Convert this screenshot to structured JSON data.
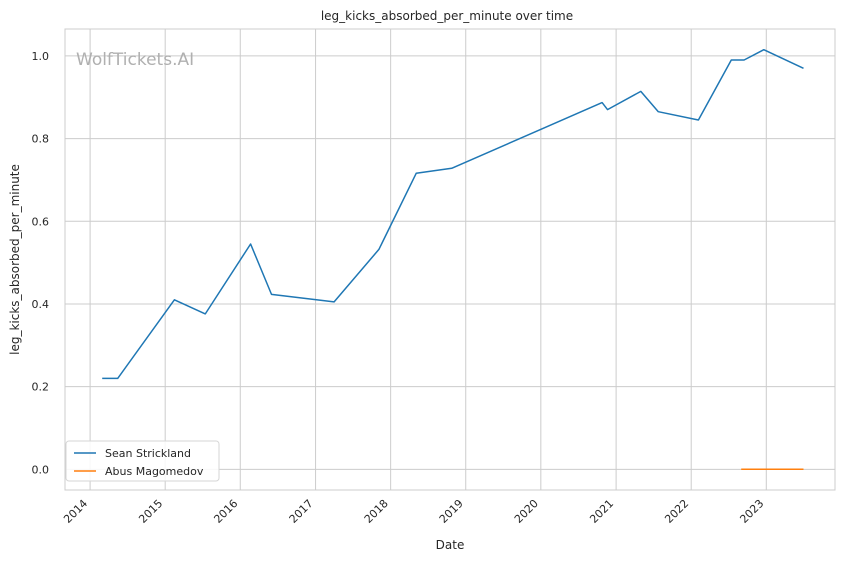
{
  "chart_data": {
    "type": "line",
    "title": "leg_kicks_absorbed_per_minute over time",
    "xlabel": "Date",
    "ylabel": "leg_kicks_absorbed_per_minute",
    "watermark": "WolfTickets.AI",
    "x_type": "date",
    "xlim": [
      "2013-09-01",
      "2023-12-01"
    ],
    "ylim": [
      -0.05,
      1.065
    ],
    "x_ticks": [
      "2014",
      "2015",
      "2016",
      "2017",
      "2018",
      "2019",
      "2020",
      "2021",
      "2022",
      "2023"
    ],
    "y_ticks": [
      "0.0",
      "0.2",
      "0.4",
      "0.6",
      "0.8",
      "1.0"
    ],
    "grid": true,
    "legend_position": "lower-left",
    "series": [
      {
        "name": "Sean Strickland",
        "color": "#1f77b4",
        "points": [
          [
            "2014-03-01",
            0.22
          ],
          [
            "2014-05-15",
            0.22
          ],
          [
            "2015-02-15",
            0.41
          ],
          [
            "2015-07-15",
            0.376
          ],
          [
            "2016-02-20",
            0.545
          ],
          [
            "2016-06-01",
            0.423
          ],
          [
            "2017-04-01",
            0.405
          ],
          [
            "2017-11-05",
            0.532
          ],
          [
            "2018-05-05",
            0.716
          ],
          [
            "2018-10-25",
            0.728
          ],
          [
            "2020-10-25",
            0.887
          ],
          [
            "2020-11-20",
            0.87
          ],
          [
            "2021-05-01",
            0.914
          ],
          [
            "2021-07-25",
            0.865
          ],
          [
            "2022-02-05",
            0.845
          ],
          [
            "2022-07-15",
            0.99
          ],
          [
            "2022-09-15",
            0.99
          ],
          [
            "2022-12-20",
            1.015
          ],
          [
            "2023-07-01",
            0.97
          ]
        ]
      },
      {
        "name": "Abus Magomedov",
        "color": "#ff7f0e",
        "points": [
          [
            "2022-09-01",
            0.0
          ],
          [
            "2023-07-01",
            0.0
          ]
        ]
      }
    ]
  }
}
